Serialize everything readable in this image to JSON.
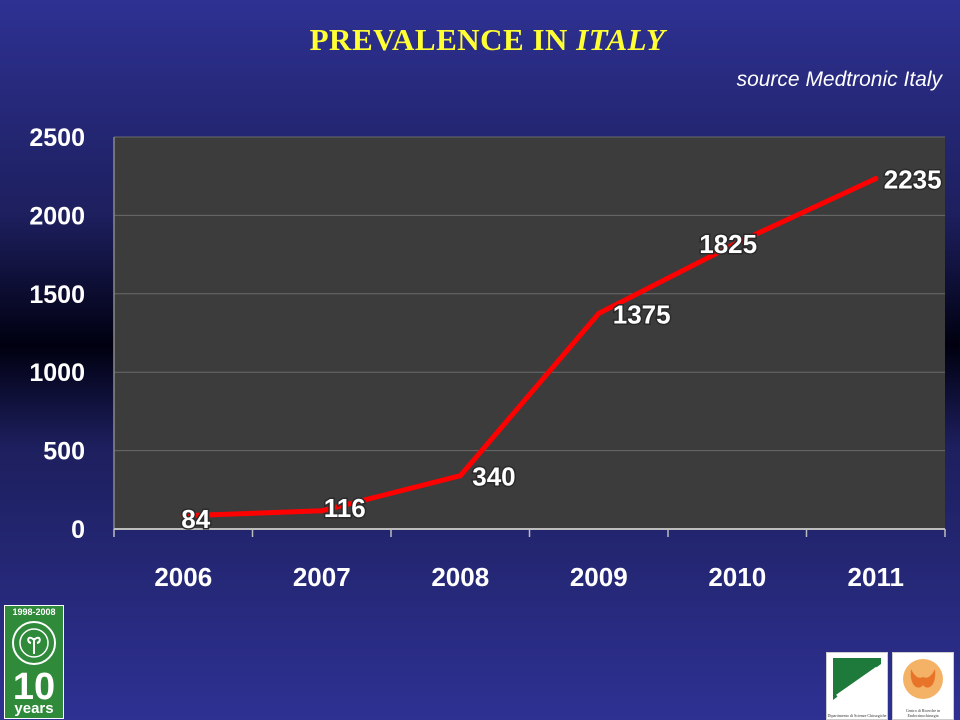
{
  "slide": {
    "title_prefix": "PREVALENCE IN ",
    "title_emphasis": "ITALY",
    "source": "source Medtronic Italy"
  },
  "colors": {
    "background": "#2e3192",
    "title": "#ffff33",
    "plot_area": "#3c3c3c",
    "line": "#ff0000",
    "text": "#ffffff"
  },
  "chart_data": {
    "type": "line",
    "title": "PREVALENCE IN ITALY",
    "categories": [
      "2006",
      "2007",
      "2008",
      "2009",
      "2010",
      "2011"
    ],
    "series": [
      {
        "values": [
          84,
          116,
          340,
          1375,
          1825,
          2235
        ]
      }
    ],
    "data_labels": [
      "84",
      "116",
      "340",
      "1375",
      "1825",
      "2235"
    ],
    "yticks": [
      "0",
      "500",
      "1000",
      "1500",
      "2000",
      "2500"
    ],
    "ylim": [
      0,
      2500
    ],
    "grid": true,
    "legend": "none"
  },
  "logos": {
    "anniversary": {
      "years": "1998-2008",
      "number": "10",
      "word": "years"
    },
    "department": "Dipartimento di Scienze Chirurgiche",
    "center": "Centro di Ricerche in Endocrinochirurgia"
  }
}
